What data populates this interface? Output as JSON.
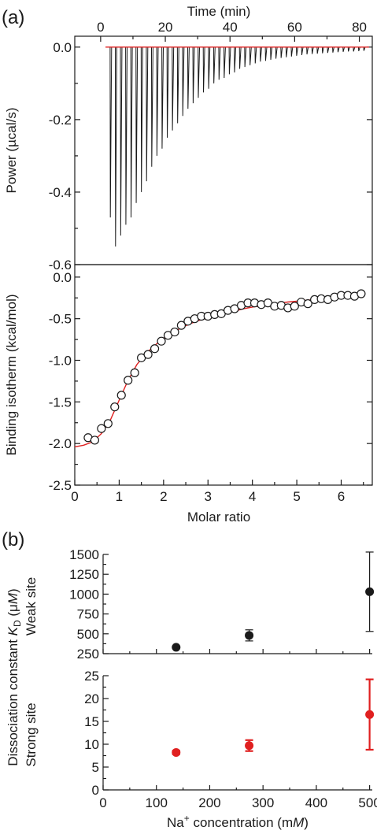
{
  "panel_labels": {
    "a": "(a)",
    "b": "(b)"
  },
  "colors": {
    "black": "#1a1a1a",
    "red": "#e02020",
    "white": "#ffffff"
  },
  "chart_data": [
    {
      "id": "power",
      "type": "line",
      "xlabel_top": "Time (min)",
      "ylabel": "Power (µcal/s)",
      "xlim": [
        -8,
        84
      ],
      "ylim": [
        -0.6,
        0.03
      ],
      "xticks": [
        0,
        20,
        40,
        60,
        80
      ],
      "xtick_labels": [
        "0",
        "20",
        "40",
        "60",
        "80"
      ],
      "yticks": [
        0.0,
        -0.2,
        -0.4,
        -0.6
      ],
      "ytick_labels": [
        "0.0",
        "-0.2",
        "-0.4",
        "-0.6"
      ],
      "baseline_y": 0.0,
      "injection_times": [
        3.0,
        4.6,
        6.2,
        7.8,
        9.4,
        11.0,
        12.6,
        14.2,
        15.8,
        17.4,
        19.0,
        20.6,
        22.2,
        23.8,
        25.4,
        27.0,
        28.6,
        30.2,
        31.8,
        33.4,
        35.0,
        36.6,
        38.2,
        39.8,
        41.4,
        43.0,
        44.6,
        46.2,
        47.8,
        49.4,
        51.0,
        52.6,
        54.2,
        55.8,
        57.4,
        59.0,
        60.6,
        62.2,
        63.8,
        65.4,
        67.0,
        68.6,
        70.2,
        71.8,
        73.4,
        75.0,
        76.6,
        78.2,
        79.8,
        81.4
      ],
      "peak_values": [
        -0.47,
        -0.55,
        -0.52,
        -0.49,
        -0.47,
        -0.43,
        -0.4,
        -0.37,
        -0.33,
        -0.3,
        -0.28,
        -0.25,
        -0.23,
        -0.21,
        -0.19,
        -0.17,
        -0.155,
        -0.14,
        -0.125,
        -0.115,
        -0.1,
        -0.09,
        -0.085,
        -0.075,
        -0.07,
        -0.06,
        -0.055,
        -0.05,
        -0.045,
        -0.04,
        -0.038,
        -0.035,
        -0.032,
        -0.03,
        -0.028,
        -0.026,
        -0.024,
        -0.022,
        -0.02,
        -0.019,
        -0.018,
        -0.017,
        -0.016,
        -0.015,
        -0.014,
        -0.013,
        -0.012,
        -0.012,
        -0.011,
        -0.01
      ]
    },
    {
      "id": "isotherm",
      "type": "scatter",
      "xlabel": "Molar ratio",
      "ylabel": "Binding isotherm (kcal/mol)",
      "xlim": [
        0,
        6.7
      ],
      "ylim": [
        -2.5,
        0.15
      ],
      "xticks": [
        0,
        1,
        2,
        3,
        4,
        5,
        6
      ],
      "xtick_labels": [
        "0",
        "1",
        "2",
        "3",
        "4",
        "5",
        "6"
      ],
      "yticks": [
        0.0,
        -0.5,
        -1.0,
        -1.5,
        -2.0,
        -2.5
      ],
      "ytick_labels": [
        "0.0",
        "-0.5",
        "-1.0",
        "-1.5",
        "-2.0",
        "-2.5"
      ],
      "points_x": [
        0.3,
        0.45,
        0.6,
        0.75,
        0.9,
        1.05,
        1.2,
        1.35,
        1.5,
        1.65,
        1.8,
        1.95,
        2.1,
        2.25,
        2.4,
        2.55,
        2.7,
        2.85,
        3.0,
        3.15,
        3.3,
        3.45,
        3.6,
        3.75,
        3.9,
        4.05,
        4.2,
        4.35,
        4.5,
        4.65,
        4.8,
        4.95,
        5.1,
        5.25,
        5.4,
        5.55,
        5.7,
        5.85,
        6.0,
        6.15,
        6.3,
        6.45
      ],
      "points_y": [
        -1.93,
        -1.96,
        -1.82,
        -1.76,
        -1.56,
        -1.42,
        -1.24,
        -1.15,
        -0.97,
        -0.93,
        -0.86,
        -0.77,
        -0.7,
        -0.66,
        -0.58,
        -0.53,
        -0.5,
        -0.47,
        -0.47,
        -0.45,
        -0.44,
        -0.4,
        -0.38,
        -0.34,
        -0.31,
        -0.31,
        -0.33,
        -0.31,
        -0.35,
        -0.34,
        -0.37,
        -0.35,
        -0.3,
        -0.32,
        -0.27,
        -0.26,
        -0.27,
        -0.24,
        -0.22,
        -0.22,
        -0.23,
        -0.2
      ],
      "fit_x": [
        0,
        0.2,
        0.4,
        0.6,
        0.8,
        1.0,
        1.2,
        1.4,
        1.6,
        1.8,
        2.0,
        2.2,
        2.4,
        2.6,
        2.8,
        3.0,
        3.2,
        3.4,
        3.6,
        3.8,
        4.0,
        4.2,
        4.4,
        4.6,
        4.8,
        5.0,
        5.2,
        5.4,
        5.6,
        5.8,
        6.0,
        6.2,
        6.4
      ],
      "fit_y": [
        -2.04,
        -2.02,
        -1.98,
        -1.88,
        -1.72,
        -1.48,
        -1.24,
        -1.05,
        -0.92,
        -0.82,
        -0.74,
        -0.67,
        -0.61,
        -0.56,
        -0.52,
        -0.49,
        -0.46,
        -0.43,
        -0.41,
        -0.38,
        -0.36,
        -0.345,
        -0.33,
        -0.315,
        -0.3,
        -0.29,
        -0.28,
        -0.27,
        -0.26,
        -0.25,
        -0.24,
        -0.235,
        -0.23
      ]
    },
    {
      "id": "weak-site",
      "type": "scatter",
      "ylabel": "Weak site",
      "xlim": [
        0,
        505
      ],
      "ylim": [
        250,
        1500
      ],
      "yticks": [
        250,
        500,
        750,
        1000,
        1250,
        1500
      ],
      "ytick_labels": [
        "250",
        "500",
        "750",
        "1000",
        "1250",
        "1500"
      ],
      "points": [
        {
          "x": 137,
          "y": 330,
          "err": 0
        },
        {
          "x": 274,
          "y": 480,
          "err": 70
        },
        {
          "x": 500,
          "y": 1030,
          "err": 500
        }
      ]
    },
    {
      "id": "strong-site",
      "type": "scatter",
      "ylabel": "Strong site",
      "xlabel": "Na⁺ concentration (mM)",
      "xlim": [
        0,
        505
      ],
      "ylim": [
        0,
        25
      ],
      "xticks": [
        0,
        100,
        200,
        300,
        400,
        500
      ],
      "xtick_labels": [
        "0",
        "100",
        "200",
        "300",
        "400",
        "500"
      ],
      "yticks": [
        0,
        5,
        10,
        15,
        20,
        25
      ],
      "ytick_labels": [
        "0",
        "5",
        "10",
        "15",
        "20",
        "25"
      ],
      "points": [
        {
          "x": 137,
          "y": 8.2,
          "err": 0.4
        },
        {
          "x": 274,
          "y": 9.7,
          "err": 1.2
        },
        {
          "x": 500,
          "y": 16.5,
          "err": 7.7
        }
      ]
    }
  ],
  "shared_ylabel_b": "Dissociation constant K_D (μM)",
  "shared_ylabel_b_parts": {
    "prefix": "Dissociation constant ",
    "K": "K",
    "sub": "D",
    "unit_open": " (",
    "mu": "μ",
    "M": "M",
    "unit_close": ")"
  },
  "xlabel_b_parts": {
    "prefix": "Na",
    "sup": "+",
    "mid": " concentration (m",
    "M": "M",
    "close": ")"
  }
}
